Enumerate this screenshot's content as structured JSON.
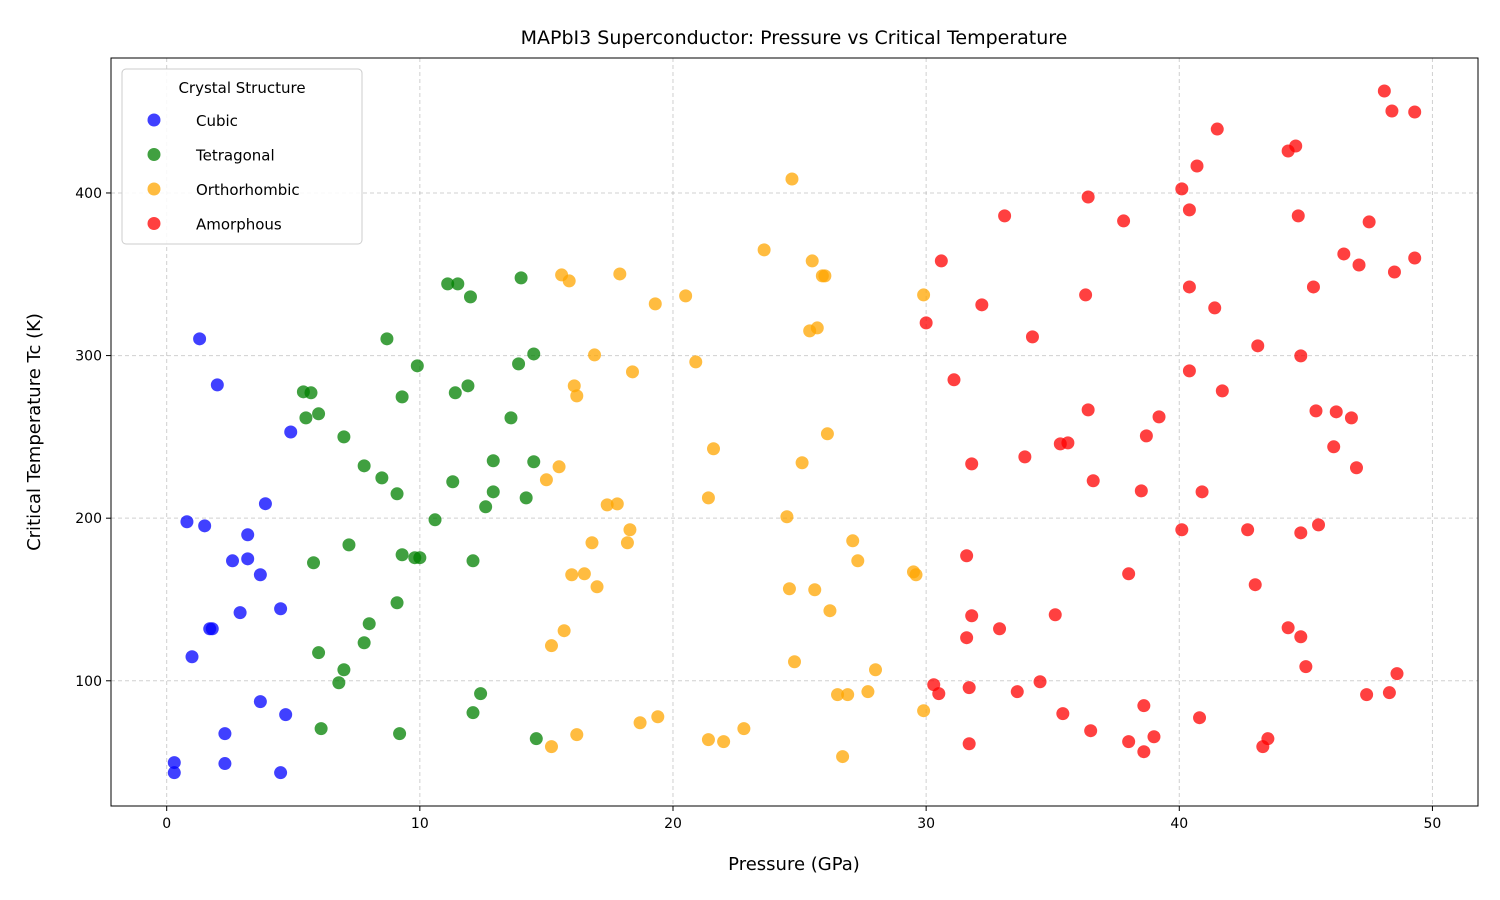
{
  "chart_data": {
    "type": "scatter",
    "title": "MAPbI3 Superconductor: Pressure vs Critical Temperature",
    "xlabel": "Pressure (GPa)",
    "ylabel": "Critical Temperature Tc (K)",
    "xlim": [
      -2.2,
      51.8
    ],
    "ylim": [
      23,
      483
    ],
    "xticks": [
      0,
      10,
      20,
      30,
      40,
      50
    ],
    "yticks": [
      100,
      200,
      300,
      400
    ],
    "grid": true,
    "legend": {
      "title": "Crystal Structure",
      "position": "top-left"
    },
    "series": [
      {
        "name": "Cubic",
        "color": "#0000ff",
        "points": [
          [
            0.3,
            49.7
          ],
          [
            0.3,
            43.5
          ],
          [
            1.3,
            310.3
          ],
          [
            2.0,
            282
          ],
          [
            4.9,
            253
          ],
          [
            0.8,
            197.8
          ],
          [
            1.5,
            195.3
          ],
          [
            3.9,
            208.9
          ],
          [
            3.2,
            189.8
          ],
          [
            2.6,
            173.8
          ],
          [
            3.2,
            175
          ],
          [
            3.7,
            165.2
          ],
          [
            4.5,
            144.3
          ],
          [
            2.9,
            141.9
          ],
          [
            1.7,
            132
          ],
          [
            1.8,
            132
          ],
          [
            1.0,
            114.8
          ],
          [
            3.7,
            87.2
          ],
          [
            4.7,
            79.2
          ],
          [
            2.3,
            67.5
          ],
          [
            2.3,
            49.1
          ],
          [
            4.5,
            43.5
          ]
        ]
      },
      {
        "name": "Tetragonal",
        "color": "#008000",
        "points": [
          [
            11.1,
            344.1
          ],
          [
            11.5,
            344.1
          ],
          [
            12.0,
            336.1
          ],
          [
            14.0,
            347.8
          ],
          [
            8.7,
            310.3
          ],
          [
            9.9,
            293.7
          ],
          [
            5.4,
            277.7
          ],
          [
            5.7,
            277.1
          ],
          [
            5.5,
            261.7
          ],
          [
            6.0,
            264.2
          ],
          [
            11.9,
            281.4
          ],
          [
            11.4,
            277.1
          ],
          [
            9.3,
            274.6
          ],
          [
            14.5,
            301
          ],
          [
            13.9,
            294.9
          ],
          [
            13.6,
            261.7
          ],
          [
            7.0,
            250
          ],
          [
            12.9,
            235.3
          ],
          [
            14.5,
            234.7
          ],
          [
            7.8,
            232.2
          ],
          [
            8.5,
            224.8
          ],
          [
            11.3,
            222.4
          ],
          [
            9.1,
            215
          ],
          [
            12.9,
            216.2
          ],
          [
            14.2,
            212.5
          ],
          [
            12.6,
            207
          ],
          [
            10.6,
            199
          ],
          [
            7.2,
            183.6
          ],
          [
            9.3,
            177.5
          ],
          [
            9.8,
            175.7
          ],
          [
            10.0,
            175.7
          ],
          [
            5.8,
            172.6
          ],
          [
            12.1,
            173.8
          ],
          [
            9.1,
            148
          ],
          [
            8.0,
            135.1
          ],
          [
            6.0,
            117.3
          ],
          [
            7.8,
            123.4
          ],
          [
            7.0,
            106.8
          ],
          [
            6.8,
            98.8
          ],
          [
            12.4,
            92.1
          ],
          [
            12.1,
            80.4
          ],
          [
            6.1,
            70.6
          ],
          [
            9.2,
            67.5
          ],
          [
            14.6,
            64.4
          ]
        ]
      },
      {
        "name": "Orthorhombic",
        "color": "#ffa500",
        "points": [
          [
            24.7,
            408.6
          ],
          [
            23.6,
            365
          ],
          [
            25.5,
            358.2
          ],
          [
            15.6,
            349.6
          ],
          [
            15.9,
            345.9
          ],
          [
            17.9,
            350.2
          ],
          [
            25.9,
            349
          ],
          [
            26.0,
            349
          ],
          [
            20.5,
            336.7
          ],
          [
            19.3,
            331.8
          ],
          [
            29.9,
            337.3
          ],
          [
            25.7,
            317
          ],
          [
            25.4,
            315.2
          ],
          [
            16.9,
            300.4
          ],
          [
            20.9,
            296.1
          ],
          [
            18.4,
            290
          ],
          [
            16.1,
            281.4
          ],
          [
            16.2,
            275.2
          ],
          [
            26.1,
            251.9
          ],
          [
            21.6,
            242.7
          ],
          [
            25.1,
            234.1
          ],
          [
            15.5,
            231.6
          ],
          [
            15.0,
            223.6
          ],
          [
            21.4,
            212.5
          ],
          [
            17.4,
            208.2
          ],
          [
            17.8,
            208.8
          ],
          [
            24.5,
            200.9
          ],
          [
            18.3,
            192.9
          ],
          [
            16.8,
            184.9
          ],
          [
            18.2,
            184.9
          ],
          [
            27.1,
            186.1
          ],
          [
            27.3,
            173.8
          ],
          [
            16.0,
            165.2
          ],
          [
            16.5,
            165.8
          ],
          [
            17.0,
            157.8
          ],
          [
            24.6,
            156.6
          ],
          [
            25.6,
            156
          ],
          [
            29.5,
            167
          ],
          [
            29.6,
            165.2
          ],
          [
            26.2,
            143.1
          ],
          [
            15.7,
            130.8
          ],
          [
            15.2,
            121.6
          ],
          [
            24.8,
            111.7
          ],
          [
            28.0,
            106.8
          ],
          [
            26.5,
            91.5
          ],
          [
            26.9,
            91.5
          ],
          [
            27.7,
            93.3
          ],
          [
            29.9,
            81.6
          ],
          [
            19.4,
            77.9
          ],
          [
            18.7,
            74.2
          ],
          [
            22.8,
            70.6
          ],
          [
            16.2,
            66.9
          ],
          [
            21.4,
            63.8
          ],
          [
            22.0,
            62.6
          ],
          [
            15.2,
            59.5
          ],
          [
            26.7,
            53.4
          ]
        ]
      },
      {
        "name": "Amorphous",
        "color": "#ff0000",
        "points": [
          [
            48.1,
            462.7
          ],
          [
            48.4,
            450.4
          ],
          [
            49.3,
            449.8
          ],
          [
            41.5,
            439.3
          ],
          [
            44.6,
            428.9
          ],
          [
            44.3,
            425.8
          ],
          [
            40.7,
            416.6
          ],
          [
            40.1,
            402.5
          ],
          [
            36.4,
            397.5
          ],
          [
            40.4,
            389.6
          ],
          [
            37.8,
            382.8
          ],
          [
            44.7,
            385.9
          ],
          [
            33.1,
            385.9
          ],
          [
            47.5,
            382.2
          ],
          [
            30.6,
            358.2
          ],
          [
            46.5,
            362.5
          ],
          [
            47.1,
            355.7
          ],
          [
            49.3,
            360
          ],
          [
            48.5,
            351.4
          ],
          [
            45.3,
            342.2
          ],
          [
            40.4,
            342.2
          ],
          [
            36.3,
            337.3
          ],
          [
            41.4,
            329.3
          ],
          [
            32.2,
            331.2
          ],
          [
            30.0,
            320.1
          ],
          [
            34.2,
            311.5
          ],
          [
            43.1,
            306
          ],
          [
            44.8,
            299.8
          ],
          [
            40.4,
            290.6
          ],
          [
            31.1,
            285.1
          ],
          [
            41.7,
            278.3
          ],
          [
            45.4,
            266
          ],
          [
            46.2,
            265.4
          ],
          [
            46.8,
            261.7
          ],
          [
            36.4,
            266.6
          ],
          [
            39.2,
            262.3
          ],
          [
            35.3,
            245.7
          ],
          [
            35.6,
            246.3
          ],
          [
            46.1,
            243.9
          ],
          [
            38.7,
            250.6
          ],
          [
            33.9,
            237.7
          ],
          [
            31.8,
            233.4
          ],
          [
            47.0,
            231
          ],
          [
            36.6,
            223
          ],
          [
            38.5,
            216.8
          ],
          [
            40.9,
            216.2
          ],
          [
            40.1,
            192.9
          ],
          [
            42.7,
            192.9
          ],
          [
            44.8,
            191
          ],
          [
            45.5,
            195.9
          ],
          [
            31.6,
            176.9
          ],
          [
            38.0,
            165.8
          ],
          [
            43.0,
            159.1
          ],
          [
            31.8,
            140
          ],
          [
            35.1,
            140.6
          ],
          [
            32.9,
            132
          ],
          [
            44.3,
            132.6
          ],
          [
            31.6,
            126.5
          ],
          [
            44.8,
            127.1
          ],
          [
            45.0,
            108.7
          ],
          [
            48.6,
            104.4
          ],
          [
            30.3,
            97.6
          ],
          [
            34.5,
            99.4
          ],
          [
            31.7,
            95.8
          ],
          [
            30.5,
            92.1
          ],
          [
            33.6,
            93.3
          ],
          [
            47.4,
            91.5
          ],
          [
            48.3,
            92.7
          ],
          [
            35.4,
            79.8
          ],
          [
            40.8,
            77.3
          ],
          [
            38.6,
            84.7
          ],
          [
            36.5,
            69.3
          ],
          [
            39.0,
            65.6
          ],
          [
            38.0,
            62.6
          ],
          [
            31.7,
            61.3
          ],
          [
            43.5,
            64.4
          ],
          [
            43.3,
            59.5
          ],
          [
            38.6,
            56.4
          ]
        ]
      }
    ]
  }
}
